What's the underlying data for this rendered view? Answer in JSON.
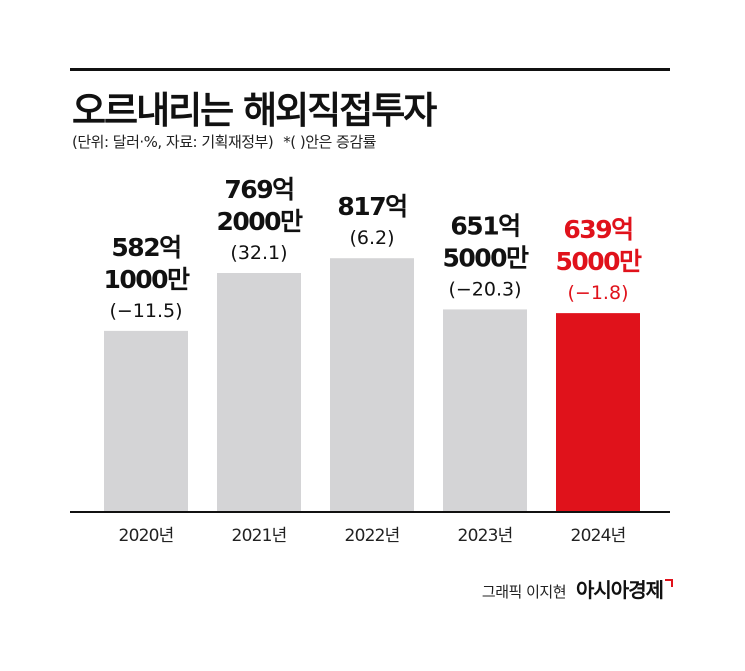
{
  "title": "오르내리는 해외직접투자",
  "subtitle": "(단위: 달러·%, 자료: 기획재정부)",
  "note": "*(  )안은 증감률",
  "credit": "그래픽 이지현",
  "brand": "아시아경제",
  "colors": {
    "bar_default": "#d4d4d6",
    "bar_highlight": "#e0121b",
    "axis": "#111111"
  },
  "chart_data": {
    "type": "bar",
    "categories": [
      "2020년",
      "2021년",
      "2022년",
      "2023년",
      "2024년"
    ],
    "values": [
      582.1,
      769.2,
      817,
      651.5,
      639.5
    ],
    "value_unit": "억 달러",
    "label_amounts": [
      [
        "582억",
        "1000만"
      ],
      [
        "769억",
        "2000만"
      ],
      [
        "817억"
      ],
      [
        "651억",
        "5000만"
      ],
      [
        "639억",
        "5000만"
      ]
    ],
    "growth_rates": [
      "(−11.5)",
      "(32.1)",
      "(6.2)",
      "(−20.3)",
      "(−1.8)"
    ],
    "highlight_index": 4,
    "ylim": [
      0,
      850
    ],
    "grid": false,
    "legend": "none"
  }
}
